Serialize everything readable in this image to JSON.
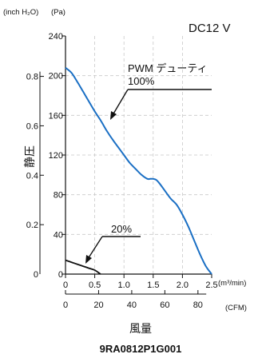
{
  "chart_data": {
    "type": "line",
    "title": "DC12 V",
    "footer_label": "9RA0812P1G001",
    "xlabel": "風量",
    "ylabel": "静圧",
    "x_units": {
      "primary": "(m³/min)",
      "secondary": "(CFM)"
    },
    "y_units": {
      "primary": "(Pa)",
      "secondary": "(inch H₂O)"
    },
    "xlim": [
      0,
      2.5
    ],
    "ylim": [
      0,
      240
    ],
    "x_ticks": [
      0,
      0.5,
      1.0,
      1.5,
      2.0,
      2.5
    ],
    "x_tick_labels": [
      "0",
      "0.5",
      "1.0",
      "1.5",
      "2.0",
      "2.5"
    ],
    "x2_ticks_cfm": [
      0,
      20,
      40,
      60,
      80
    ],
    "x2_tick_labels": [
      "0",
      "20",
      "40",
      "60",
      "80"
    ],
    "y_ticks": [
      0,
      40,
      80,
      120,
      160,
      200,
      240
    ],
    "y_tick_labels": [
      "0",
      "40",
      "80",
      "120",
      "160",
      "200",
      "240"
    ],
    "y2_ticks_inch": [
      0.2,
      0.4,
      0.6,
      0.8
    ],
    "y2_tick_labels": [
      "0.2",
      "0.4",
      "0.6",
      "0.8"
    ],
    "y2_bottom_label": "0",
    "annotation_prefix": "PWM デューティ",
    "series": [
      {
        "name": "100%",
        "color": "#1a6fc4",
        "x": [
          0,
          0.1,
          0.2,
          0.3,
          0.4,
          0.5,
          0.6,
          0.7,
          0.8,
          0.9,
          1.0,
          1.1,
          1.2,
          1.3,
          1.4,
          1.45,
          1.5,
          1.55,
          1.6,
          1.7,
          1.8,
          1.9,
          2.0,
          2.1,
          2.2,
          2.3,
          2.4,
          2.5
        ],
        "y": [
          208,
          203,
          194,
          184,
          174,
          164,
          155,
          145,
          136,
          128,
          120,
          112,
          106,
          100,
          96,
          96,
          96,
          95,
          92,
          84,
          76,
          70,
          60,
          48,
          34,
          20,
          8,
          0
        ]
      },
      {
        "name": "20%",
        "color": "#111111",
        "x": [
          0,
          0.1,
          0.2,
          0.3,
          0.4,
          0.5,
          0.6
        ],
        "y": [
          14,
          12,
          10,
          8,
          6,
          4,
          0
        ]
      }
    ],
    "grid": true,
    "legend": "annotations-on-curves"
  }
}
